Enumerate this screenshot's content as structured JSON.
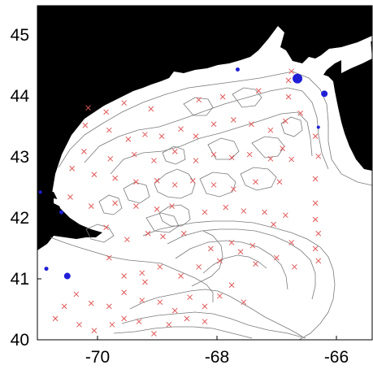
{
  "map": {
    "x_ticks": [
      "-70",
      "-68",
      "-66"
    ],
    "y_ticks": [
      "40",
      "41",
      "42",
      "43",
      "44",
      "45"
    ],
    "x_range": [
      -71,
      -65.4
    ],
    "y_range": [
      40,
      45.5
    ],
    "colors": {
      "land": "#000000",
      "water": "#ffffff",
      "contour": "#7a7a7a",
      "station_marker": "#e05a5a",
      "blue_marker": "#1f1fd6"
    },
    "station_markers": [
      [
        -70.2,
        43.53
      ],
      [
        -69.8,
        43.45
      ],
      [
        -69.48,
        43.3
      ],
      [
        -69.2,
        43.38
      ],
      [
        -68.92,
        43.35
      ],
      [
        -68.6,
        43.47
      ],
      [
        -68.35,
        43.35
      ],
      [
        -68.05,
        43.55
      ],
      [
        -67.72,
        43.62
      ],
      [
        -67.42,
        43.55
      ],
      [
        -67.1,
        43.45
      ],
      [
        -66.85,
        43.6
      ],
      [
        -66.6,
        43.73
      ],
      [
        -70.22,
        43.1
      ],
      [
        -69.78,
        42.98
      ],
      [
        -69.38,
        43.05
      ],
      [
        -69.05,
        42.95
      ],
      [
        -68.7,
        43.1
      ],
      [
        -68.35,
        42.95
      ],
      [
        -68.05,
        43.05
      ],
      [
        -67.75,
        43.0
      ],
      [
        -67.45,
        43.05
      ],
      [
        -67.1,
        42.98
      ],
      [
        -66.9,
        43.15
      ],
      [
        -66.75,
        42.97
      ],
      [
        -66.3,
        43.02
      ],
      [
        -70.42,
        42.82
      ],
      [
        -70.05,
        42.72
      ],
      [
        -69.7,
        42.66
      ],
      [
        -69.35,
        42.6
      ],
      [
        -69.0,
        42.62
      ],
      [
        -68.7,
        42.55
      ],
      [
        -68.4,
        42.62
      ],
      [
        -68.05,
        42.55
      ],
      [
        -67.72,
        42.48
      ],
      [
        -67.35,
        42.6
      ],
      [
        -66.95,
        42.6
      ],
      [
        -66.35,
        42.65
      ],
      [
        -70.45,
        42.35
      ],
      [
        -70.1,
        42.2
      ],
      [
        -69.7,
        42.25
      ],
      [
        -69.35,
        42.2
      ],
      [
        -69.0,
        42.15
      ],
      [
        -68.75,
        42.2
      ],
      [
        -68.2,
        42.1
      ],
      [
        -67.85,
        42.18
      ],
      [
        -67.55,
        42.12
      ],
      [
        -67.2,
        42.1
      ],
      [
        -66.85,
        42.05
      ],
      [
        -66.35,
        42.25
      ],
      [
        -66.35,
        41.98
      ],
      [
        -66.3,
        41.75
      ],
      [
        -69.85,
        41.85
      ],
      [
        -69.5,
        41.65
      ],
      [
        -69.15,
        41.75
      ],
      [
        -68.9,
        41.7
      ],
      [
        -68.55,
        41.75
      ],
      [
        -68.1,
        41.5
      ],
      [
        -67.75,
        41.6
      ],
      [
        -67.4,
        41.55
      ],
      [
        -67.05,
        41.9
      ],
      [
        -66.75,
        41.6
      ],
      [
        -66.35,
        41.5
      ],
      [
        -66.3,
        41.3
      ],
      [
        -69.8,
        41.35
      ],
      [
        -69.55,
        41.05
      ],
      [
        -69.25,
        41.1
      ],
      [
        -68.95,
        41.2
      ],
      [
        -68.6,
        41.05
      ],
      [
        -68.3,
        41.2
      ],
      [
        -67.95,
        41.3
      ],
      [
        -67.6,
        41.45
      ],
      [
        -67.35,
        41.25
      ],
      [
        -67.0,
        41.35
      ],
      [
        -66.7,
        41.2
      ],
      [
        -70.35,
        40.75
      ],
      [
        -70.1,
        40.6
      ],
      [
        -69.8,
        40.55
      ],
      [
        -69.55,
        40.78
      ],
      [
        -69.25,
        40.65
      ],
      [
        -69.2,
        40.95
      ],
      [
        -68.95,
        40.62
      ],
      [
        -68.7,
        40.48
      ],
      [
        -68.45,
        40.7
      ],
      [
        -68.2,
        40.55
      ],
      [
        -67.95,
        40.72
      ],
      [
        -67.75,
        40.9
      ],
      [
        -67.55,
        40.62
      ],
      [
        -70.7,
        40.35
      ],
      [
        -70.55,
        40.55
      ],
      [
        -70.3,
        40.25
      ],
      [
        -70.05,
        40.15
      ],
      [
        -69.75,
        40.25
      ],
      [
        -69.55,
        40.35
      ],
      [
        -69.3,
        40.3
      ],
      [
        -69.05,
        40.1
      ],
      [
        -68.8,
        40.25
      ],
      [
        -68.5,
        40.35
      ],
      [
        -68.2,
        40.3
      ],
      [
        -70.15,
        43.82
      ],
      [
        -69.85,
        43.75
      ],
      [
        -69.55,
        43.9
      ],
      [
        -69.1,
        43.8
      ],
      [
        -68.3,
        43.95
      ],
      [
        -67.9,
        44.0
      ],
      [
        -67.3,
        44.1
      ],
      [
        -66.8,
        44.0
      ],
      [
        -66.35,
        43.35
      ],
      [
        -66.75,
        44.42
      ],
      [
        -66.8,
        44.27
      ]
    ],
    "blue_markers": [
      [
        -70.95,
        42.43,
        2
      ],
      [
        -70.85,
        41.17,
        2.5
      ],
      [
        -70.5,
        41.05,
        4
      ],
      [
        -70.6,
        42.1,
        2.5
      ],
      [
        -67.65,
        44.45,
        2.5
      ],
      [
        -66.65,
        44.3,
        6
      ],
      [
        -66.2,
        44.05,
        4
      ],
      [
        -66.3,
        43.5,
        2
      ]
    ]
  }
}
